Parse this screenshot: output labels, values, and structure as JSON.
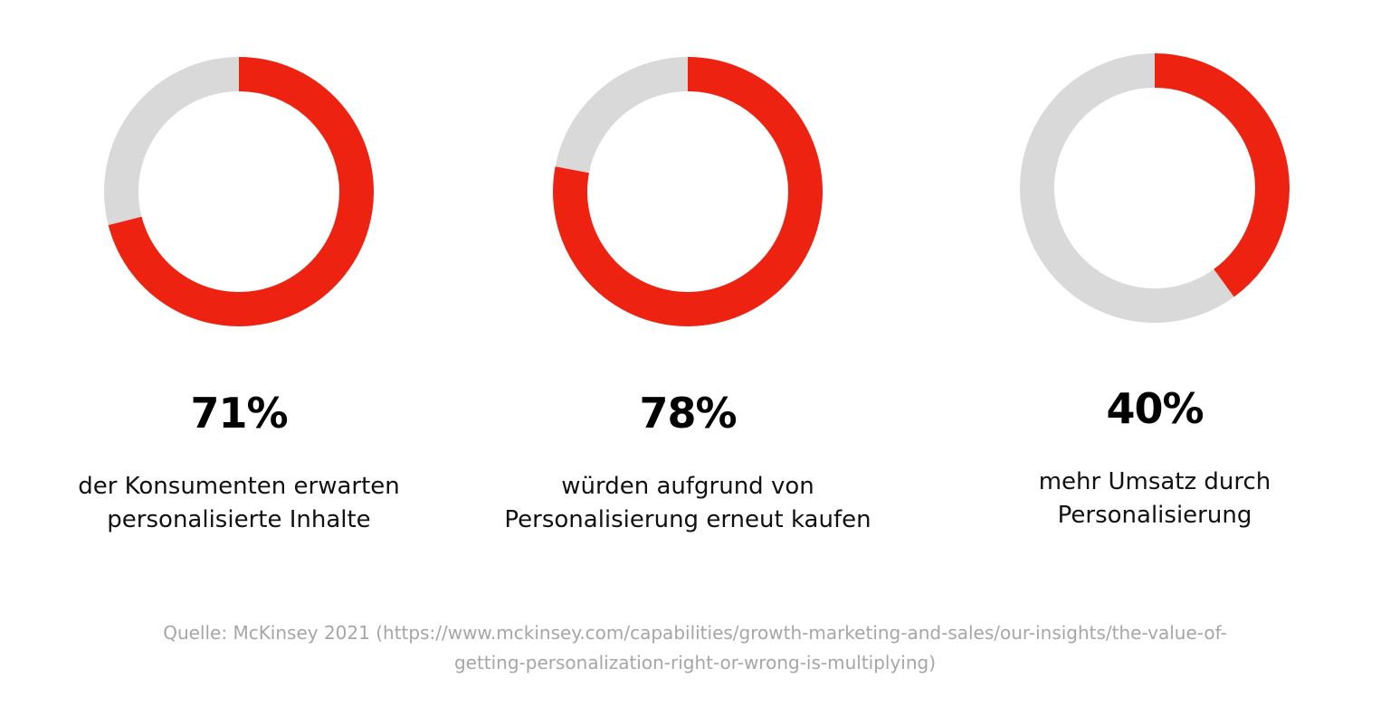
{
  "chart_data": [
    {
      "type": "pie",
      "variant": "donut",
      "values": [
        71,
        29
      ],
      "value_label": "71%",
      "description": [
        "der Konsumenten erwarten",
        "personalisierte Inhalte"
      ]
    },
    {
      "type": "pie",
      "variant": "donut",
      "values": [
        78,
        22
      ],
      "value_label": "78%",
      "description": [
        "würden aufgrund von",
        "Personalisierung erneut kaufen"
      ]
    },
    {
      "type": "pie",
      "variant": "donut",
      "values": [
        40,
        60
      ],
      "value_label": "40%",
      "description": [
        "mehr Umsatz durch",
        "Personalisierung"
      ]
    }
  ],
  "colors": {
    "filled": "#ee2211",
    "remaining": "#d9d9d9"
  },
  "source": {
    "lines": [
      "Quelle: McKinsey 2021 (https://www.mckinsey.com/capabilities/growth-marketing-and-sales/our-insights/the-value-of-",
      "getting-personalization-right-or-wrong-is-multiplying)"
    ]
  }
}
